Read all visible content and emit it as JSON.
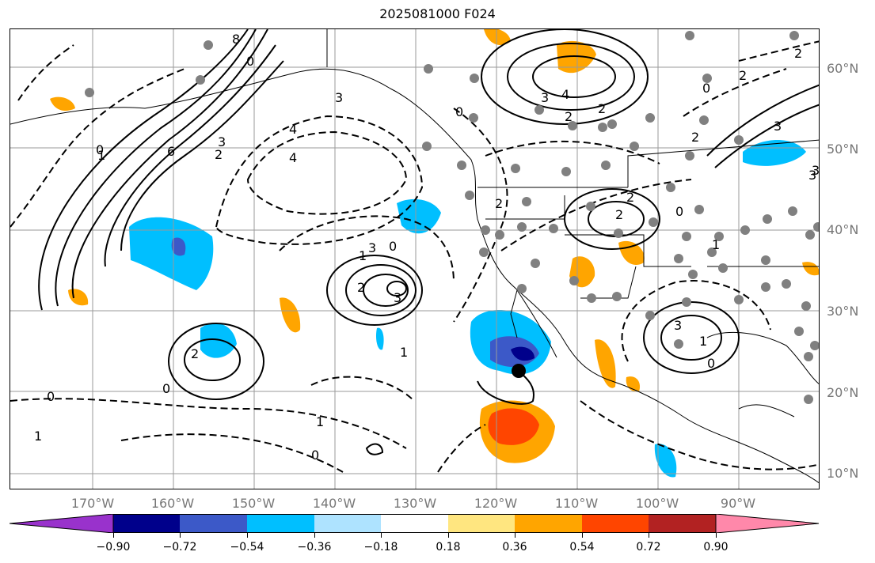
{
  "title": "2025081000 F024",
  "lat_labels": [
    "60°N",
    "50°N",
    "40°N",
    "30°N",
    "20°N",
    "10°N"
  ],
  "lon_labels": [
    "170°W",
    "160°W",
    "150°W",
    "140°W",
    "130°W",
    "120°W",
    "110°W",
    "100°W",
    "90°W"
  ],
  "contour_labels": [
    "8",
    "0",
    "3",
    "2",
    "4",
    "6",
    "1",
    "0",
    "3",
    "3",
    "0",
    "4",
    "4",
    "3",
    "2",
    "2",
    "2",
    "3",
    "0",
    "2",
    "0",
    "1",
    "2",
    "3",
    "1",
    "3",
    "2",
    "2",
    "2",
    "0",
    "1",
    "1",
    "0",
    "0",
    "2",
    "3",
    "1",
    "0",
    "3",
    "2",
    "0",
    "1"
  ],
  "colorbar": {
    "ticks": [
      "−0.90",
      "−0.72",
      "−0.54",
      "−0.36",
      "−0.18",
      "0.18",
      "0.36",
      "0.54",
      "0.72",
      "0.90"
    ],
    "colors": [
      "#9932cc",
      "#00008b",
      "#3c59c8",
      "#00bfff",
      "#aee3ff",
      "#ffffff",
      "#ffe680",
      "#ffa500",
      "#ff4500",
      "#b22222",
      "#ff88aa"
    ]
  }
}
